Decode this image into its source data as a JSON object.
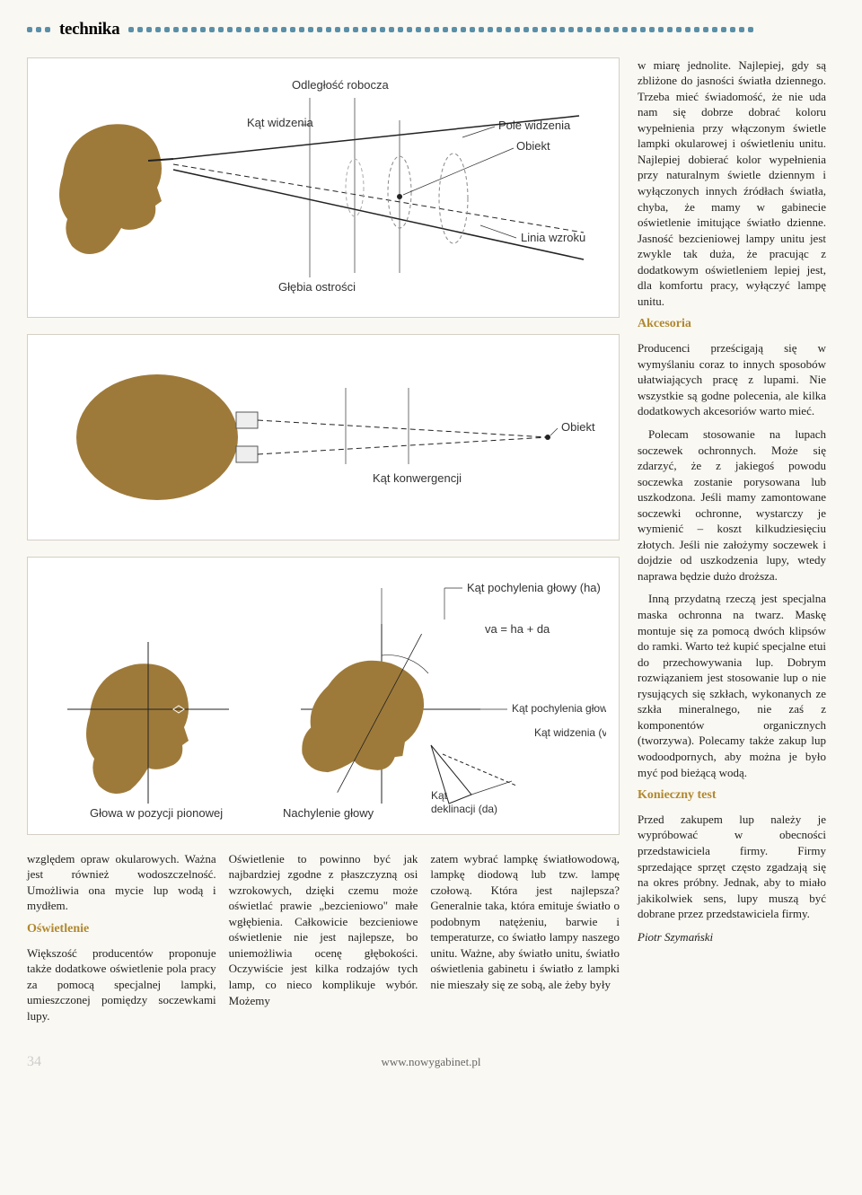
{
  "header": {
    "section": "technika"
  },
  "diagram1": {
    "label_odleglosc": "Odległość robocza",
    "label_kat_widzenia": "Kąt widzenia",
    "label_pole": "Pole widzenia",
    "label_obiekt": "Obiekt",
    "label_linia": "Linia wzroku",
    "label_glebia": "Głębia ostrości",
    "head_color": "#9e7a3a",
    "line_color": "#333",
    "bg": "#ffffff"
  },
  "diagram2": {
    "label_kat_konw": "Kąt konwergencji",
    "label_obiekt": "Obiekt",
    "head_color": "#9e7a3a",
    "line_color": "#333"
  },
  "diagram3": {
    "label_glowa": "Głowa w pozycji pionowej",
    "label_nachylenie": "Nachylenie głowy",
    "label_kat_pochyl": "Kąt pochylenia głowy (ha)",
    "label_formula": "va = ha + da",
    "label_kat_pochyl2": "Kąt pochylenia głowy (ha)",
    "label_kat_widz": "Kąt widzenia (va)",
    "label_kat_dekl": "Kąt\ndeklinacji (da)",
    "label_kat_dekl_line1": "Kąt",
    "label_kat_dekl_line2": "deklinacji (da)",
    "head_color": "#9e7a3a"
  },
  "col1": {
    "p1": "względem opraw okularowych. Ważna jest również wodoszczelność. Umożliwia ona mycie lup wodą i mydłem.",
    "h1": "Oświetlenie",
    "p2": "Większość producentów proponuje także dodatkowe oświetlenie pola pracy za pomocą specjalnej lampki, umieszczonej pomiędzy soczewkami lupy."
  },
  "col2": {
    "p1": "Oświetlenie to powinno być jak najbardziej zgodne z płaszczyzną osi wzrokowych, dzięki czemu może oświetlać prawie „bezcieniowo\" małe wgłębienia. Całkowicie bezcieniowe oświetlenie nie jest najlepsze, bo uniemożliwia ocenę głębokości. Oczywiście jest kilka rodzajów tych lamp, co nieco komplikuje wybór. Możemy"
  },
  "col3": {
    "p1": "zatem wybrać lampkę światłowodową, lampkę diodową lub tzw. lampę czołową. Która jest najlepsza? Generalnie taka, która emituje światło o podobnym natężeniu, barwie i temperaturze, co światło lampy naszego unitu. Ważne, aby światło unitu, światło oświetlenia gabinetu i światło z lampki nie mieszały się ze sobą, ale żeby były"
  },
  "right": {
    "p1": "w miarę jednolite. Najlepiej, gdy są zbliżone do jasności światła dziennego. Trzeba mieć świadomość, że nie uda nam się dobrze dobrać koloru wypełnienia przy włączonym świetle lampki okularowej i oświetleniu unitu. Najlepiej dobierać kolor wypełnienia przy naturalnym świetle dziennym i wyłączonych innych źródłach światła, chyba, że mamy w gabinecie oświetlenie imitujące światło dzienne. Jasność bezcieniowej lampy unitu jest zwykle tak duża, że pracując z dodatkowym oświetleniem lepiej jest, dla komfortu pracy, wyłączyć lampę unitu.",
    "h1": "Akcesoria",
    "p2": "Producenci prześcigają się w wymyślaniu coraz to innych sposobów ułatwiających pracę z lupami. Nie wszystkie są godne polecenia, ale kilka dodatkowych akcesoriów warto mieć.",
    "p3": "Polecam stosowanie na lupach soczewek ochronnych. Może się zdarzyć, że z jakiegoś powodu soczewka zostanie porysowana lub uszkodzona. Jeśli mamy zamontowane soczewki ochronne, wystarczy je wymienić – koszt kilkudziesięciu złotych. Jeśli nie założymy soczewek i dojdzie od uszkodzenia lupy, wtedy naprawa będzie dużo droższa.",
    "p4": "Inną przydatną rzeczą jest specjalna maska ochronna na twarz. Maskę montuje się za pomocą dwóch klipsów do ramki. Warto też kupić specjalne etui do przechowywania lup. Dobrym rozwiązaniem jest stosowanie lup o nie rysujących się szkłach, wykonanych ze szkła mineralnego, nie zaś z komponentów organicznych (tworzywa). Polecamy także zakup lup wodoodpornych, aby można je było myć pod bieżącą wodą.",
    "h2": "Konieczny test",
    "p5": "Przed zakupem lup należy je wypróbować w obecności przedstawiciela firmy. Firmy sprzedające sprzęt często zgadzają się na okres próbny. Jednak, aby to miało jakikolwiek sens, lupy muszą być dobrane przez przedstawiciela firmy.",
    "author": "Piotr Szymański"
  },
  "footer": {
    "page": "34",
    "url": "www.nowygabinet.pl"
  }
}
